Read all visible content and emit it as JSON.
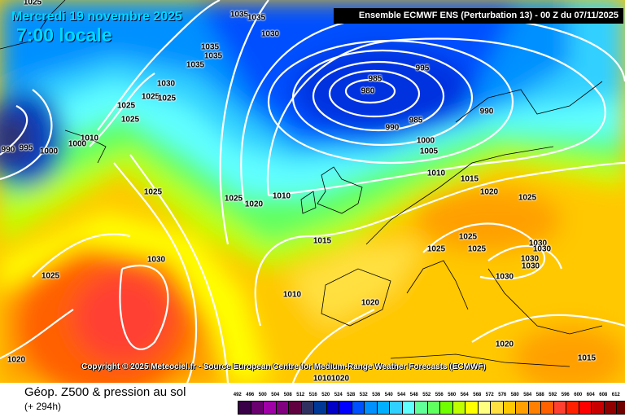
{
  "header": {
    "date": "Mercredi 19 novembre 2025",
    "local_time": "7:00 locale",
    "model": "Ensemble ECMWF ENS  (Perturbation 13)  -  00 Z du 07/11/2025"
  },
  "copyright": "Copyright © 2025 Meteociel.fr - Source European Centre for Medium-Range Weather Forecasts (ECMWF)",
  "footer": {
    "title": "Géop. Z500 & pression au sol",
    "step": "(+ 294h)"
  },
  "isobar_labels": [
    "1025",
    "1035",
    "1035",
    "1030",
    "1035",
    "1035",
    "1035",
    "1030",
    "1025",
    "1025",
    "1025",
    "1025",
    "1010",
    "1000",
    "990",
    "995",
    "1000",
    "1025",
    "1025",
    "1020",
    "1010",
    "985",
    "980",
    "995",
    "990",
    "985",
    "990",
    "1000",
    "1005",
    "1010",
    "1015",
    "1020",
    "1025",
    "1025",
    "1025",
    "1025",
    "1030",
    "1030",
    "1030",
    "1030",
    "1030",
    "1015",
    "1010",
    "1020",
    "1030",
    "1025",
    "1020",
    "1020",
    "1015",
    "1010",
    "1020"
  ],
  "legend": {
    "labels": [
      "492",
      "496",
      "500",
      "504",
      "508",
      "512",
      "516",
      "520",
      "524",
      "528",
      "532",
      "536",
      "540",
      "544",
      "548",
      "552",
      "556",
      "560",
      "564",
      "568",
      "572",
      "576",
      "580",
      "584",
      "588",
      "592",
      "596",
      "600",
      "604",
      "608",
      "612"
    ],
    "colors": [
      "#3a0048",
      "#6a0070",
      "#a000a8",
      "#800080",
      "#600040",
      "#303060",
      "#003898",
      "#0000c8",
      "#0000ff",
      "#0050ff",
      "#0090ff",
      "#00b0ff",
      "#30d0ff",
      "#60ffff",
      "#60ff98",
      "#60ff60",
      "#70ff00",
      "#c0ff00",
      "#ffff00",
      "#ffff80",
      "#ffe040",
      "#ffc800",
      "#ffa000",
      "#ff8000",
      "#ff6000",
      "#ff4030",
      "#ff2000",
      "#ff0000",
      "#c80000",
      "#900000",
      "#700000",
      "#500000",
      "#000000"
    ]
  }
}
